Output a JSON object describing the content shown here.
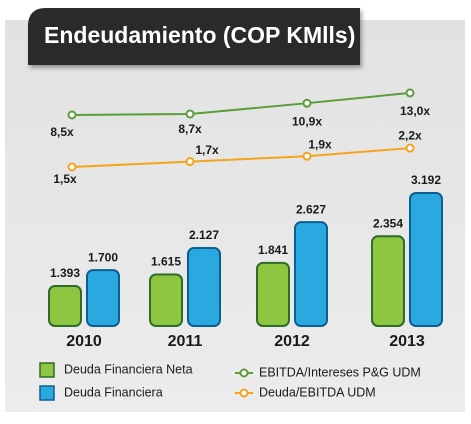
{
  "chart_data": {
    "type": "bar",
    "title": "Endeudamiento (COP KMlls)",
    "categories": [
      "2010",
      "2011",
      "2012",
      "2013"
    ],
    "series": [
      {
        "name": "Deuda Financiera Neta",
        "type": "bar",
        "color": "#8dc641",
        "values": [
          1393,
          1615,
          1841,
          2354
        ],
        "value_labels": [
          "1.393",
          "1.615",
          "1.841",
          "2.354"
        ]
      },
      {
        "name": "Deuda Financiera",
        "type": "bar",
        "color": "#2aa9e0",
        "values": [
          1700,
          2127,
          2627,
          3192
        ],
        "value_labels": [
          "1.700",
          "2.127",
          "2.627",
          "3.192"
        ]
      },
      {
        "name": "EBITDA/Intereses P&G UDM",
        "type": "line",
        "color": "#5a9e3a",
        "values": [
          8.5,
          8.7,
          10.9,
          13.0
        ],
        "value_labels": [
          "8,5x",
          "8,7x",
          "10,9x",
          "13,0x"
        ]
      },
      {
        "name": "Deuda/EBITDA UDM",
        "type": "line",
        "color": "#f5a31a",
        "values": [
          1.5,
          1.7,
          1.9,
          2.2
        ],
        "value_labels": [
          "1,5x",
          "1,7x",
          "1,9x",
          "2,2x"
        ]
      }
    ]
  }
}
